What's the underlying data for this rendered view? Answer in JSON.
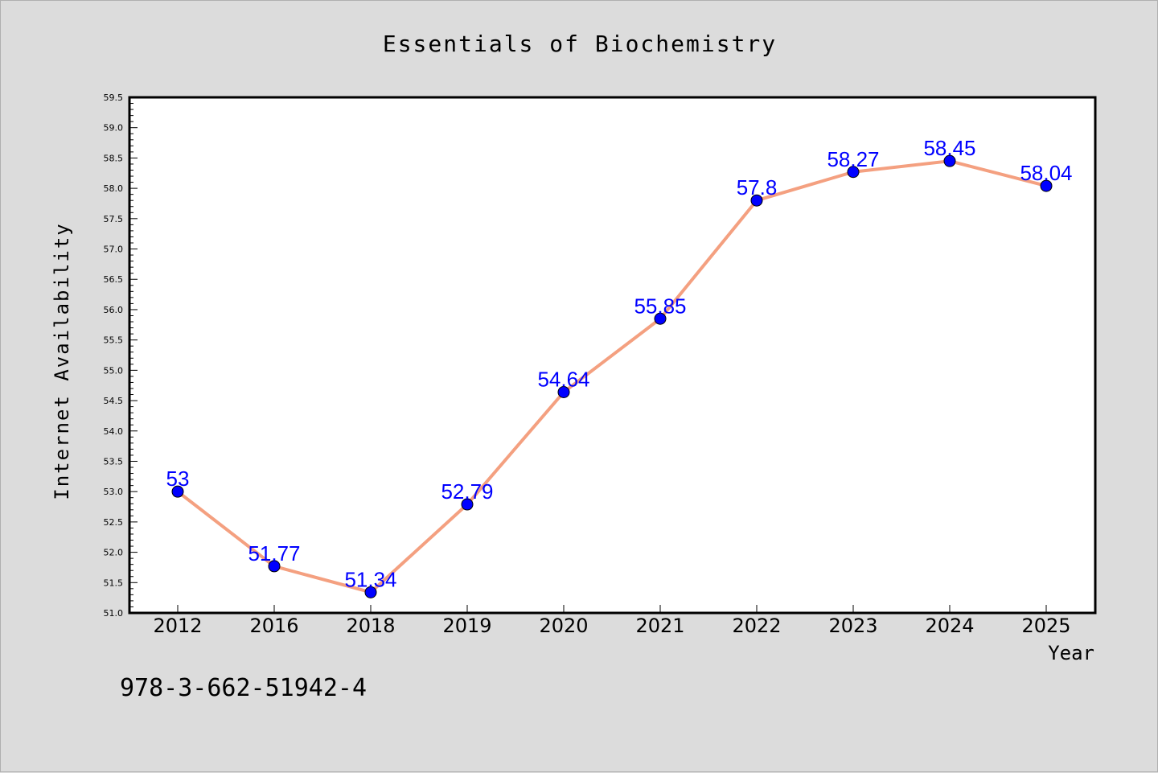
{
  "chart_data": {
    "type": "line",
    "title": "Essentials of Biochemistry",
    "xlabel": "Year",
    "ylabel": "Internet Availability",
    "categories": [
      "2012",
      "2016",
      "2018",
      "2019",
      "2020",
      "2021",
      "2022",
      "2023",
      "2024",
      "2025"
    ],
    "series": [
      {
        "values": [
          53,
          51.77,
          51.34,
          52.79,
          54.64,
          55.85,
          57.8,
          58.27,
          58.45,
          58.04
        ],
        "labels": [
          "53",
          "51.77",
          "51.34",
          "52.79",
          "54.64",
          "55.85",
          "57.8",
          "58.27",
          "58.45",
          "58.04"
        ],
        "line_color": "#f4a080",
        "marker_color": "#0000ff"
      }
    ],
    "ylim": [
      51.0,
      59.5
    ],
    "yticks": [
      "51.0",
      "51.5",
      "52.0",
      "52.5",
      "53.0",
      "53.5",
      "54.0",
      "54.5",
      "55.0",
      "55.5",
      "56.0",
      "56.5",
      "57.0",
      "57.5",
      "58.0",
      "58.5",
      "59.0",
      "59.5"
    ],
    "grid": false,
    "legend": "none"
  },
  "annotation": {
    "isbn": "978-3-662-51942-4"
  }
}
